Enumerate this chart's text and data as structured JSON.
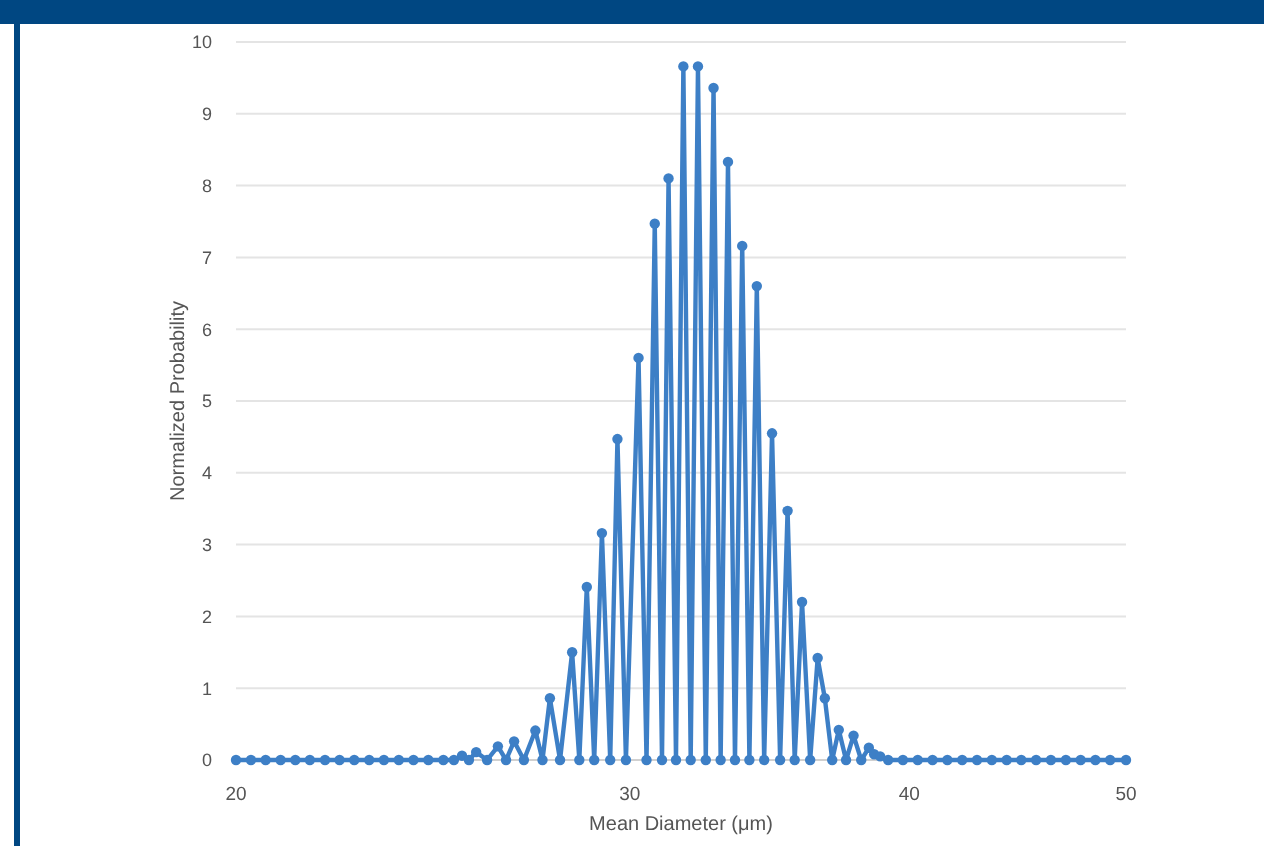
{
  "chart_data": {
    "type": "line",
    "xlabel": "Mean Diameter (μm)",
    "ylabel": "Normalized Probability",
    "x": [
      20,
      20.31,
      20.62,
      20.94,
      21.26,
      21.58,
      21.92,
      22.25,
      22.59,
      22.94,
      23.29,
      23.65,
      24.01,
      24.38,
      24.76,
      25.03,
      25.24,
      25.42,
      25.61,
      25.9,
      26.19,
      26.41,
      26.63,
      26.9,
      27.22,
      27.42,
      27.63,
      27.92,
      28.27,
      28.48,
      28.7,
      28.92,
      29.15,
      29.4,
      29.62,
      29.88,
      30.27,
      30.52,
      30.78,
      31.01,
      31.22,
      31.46,
      31.7,
      31.94,
      32.18,
      32.44,
      32.7,
      32.94,
      33.19,
      33.43,
      33.68,
      33.93,
      34.19,
      34.45,
      34.73,
      35.02,
      35.29,
      35.55,
      35.82,
      36.12,
      36.4,
      36.67,
      36.95,
      37.2,
      37.48,
      37.77,
      38.07,
      38.37,
      38.58,
      38.82,
      39.14,
      39.74,
      40.35,
      40.97,
      41.6,
      42.24,
      42.89,
      43.55,
      44.22,
      44.89,
      45.58,
      46.28,
      47,
      47.72,
      48.45,
      49.19,
      50
    ],
    "series": [
      {
        "color": "#3d7fc6",
        "values": [
          0,
          0,
          0,
          0,
          0,
          0,
          0,
          0,
          0,
          0,
          0,
          0,
          0,
          0,
          0,
          0,
          0.06,
          0,
          0.11,
          0,
          0.19,
          0,
          0.26,
          0,
          0.41,
          0,
          0.86,
          0,
          1.5,
          0,
          2.41,
          0,
          3.16,
          0,
          4.47,
          0,
          5.6,
          0,
          7.47,
          0,
          8.1,
          0,
          9.66,
          0,
          9.66,
          0,
          9.36,
          0,
          8.33,
          0,
          7.16,
          0,
          6.6,
          0,
          4.55,
          0,
          3.47,
          0,
          2.2,
          0,
          1.42,
          0.86,
          0,
          0.42,
          0,
          0.34,
          0,
          0.17,
          0.08,
          0.05,
          0,
          0,
          0,
          0,
          0,
          0,
          0,
          0,
          0,
          0,
          0,
          0,
          0,
          0,
          0,
          0,
          0
        ]
      }
    ],
    "log": "x",
    "xlim": [
      20,
      50
    ],
    "xticks": [
      20,
      30,
      40,
      50
    ],
    "ylim": [
      0,
      10
    ],
    "yticks": [
      0,
      1,
      2,
      3,
      4,
      5,
      6,
      7,
      8,
      9,
      10
    ],
    "grid": "y",
    "marker": "circle",
    "line_style": "solid"
  }
}
